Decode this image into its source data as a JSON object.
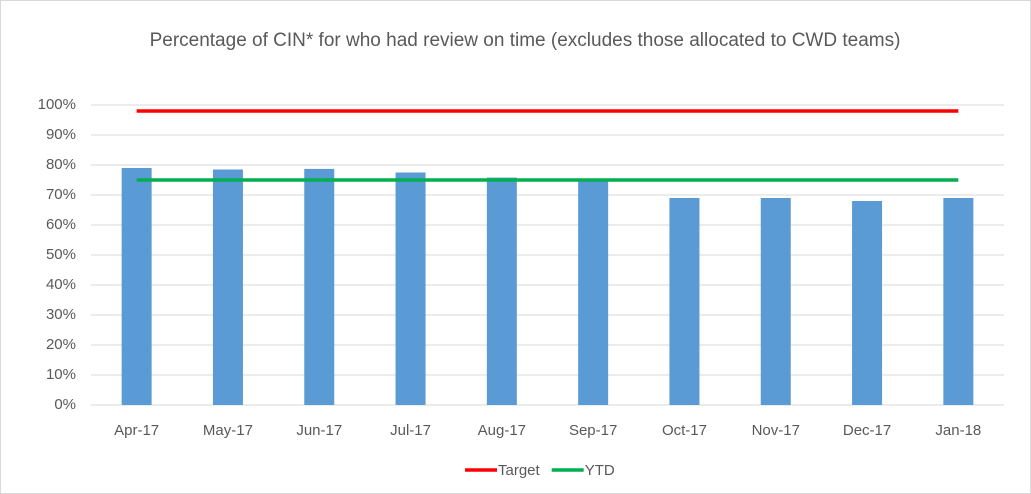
{
  "chart_data": {
    "type": "bar",
    "title": "Percentage of CIN* for who had review on time (excludes those allocated to CWD teams)",
    "categories": [
      "Apr-17",
      "May-17",
      "Jun-17",
      "Jul-17",
      "Aug-17",
      "Sep-17",
      "Oct-17",
      "Nov-17",
      "Dec-17",
      "Jan-18"
    ],
    "values": [
      79,
      78.5,
      78.7,
      77.5,
      75.8,
      75,
      69,
      69,
      68,
      69
    ],
    "color": "#5b9bd5",
    "series": [
      {
        "name": "Target",
        "color": "#ff0000",
        "values": [
          98,
          98,
          98,
          98,
          98,
          98,
          98,
          98,
          98,
          98
        ]
      },
      {
        "name": "YTD",
        "color": "#00b050",
        "values": [
          75,
          75,
          75,
          75,
          75,
          75,
          75,
          75,
          75,
          75
        ]
      }
    ],
    "ylim": [
      0,
      100
    ],
    "yticks": [
      {
        "value": 0,
        "label": "0%"
      },
      {
        "value": 10,
        "label": "10%"
      },
      {
        "value": 20,
        "label": "20%"
      },
      {
        "value": 30,
        "label": "30%"
      },
      {
        "value": 40,
        "label": "40%"
      },
      {
        "value": 50,
        "label": "50%"
      },
      {
        "value": 60,
        "label": "60%"
      },
      {
        "value": 70,
        "label": "70%"
      },
      {
        "value": 80,
        "label": "80%"
      },
      {
        "value": 90,
        "label": "90%"
      },
      {
        "value": 100,
        "label": "100%"
      }
    ],
    "grid": true,
    "legend": "bottom"
  }
}
